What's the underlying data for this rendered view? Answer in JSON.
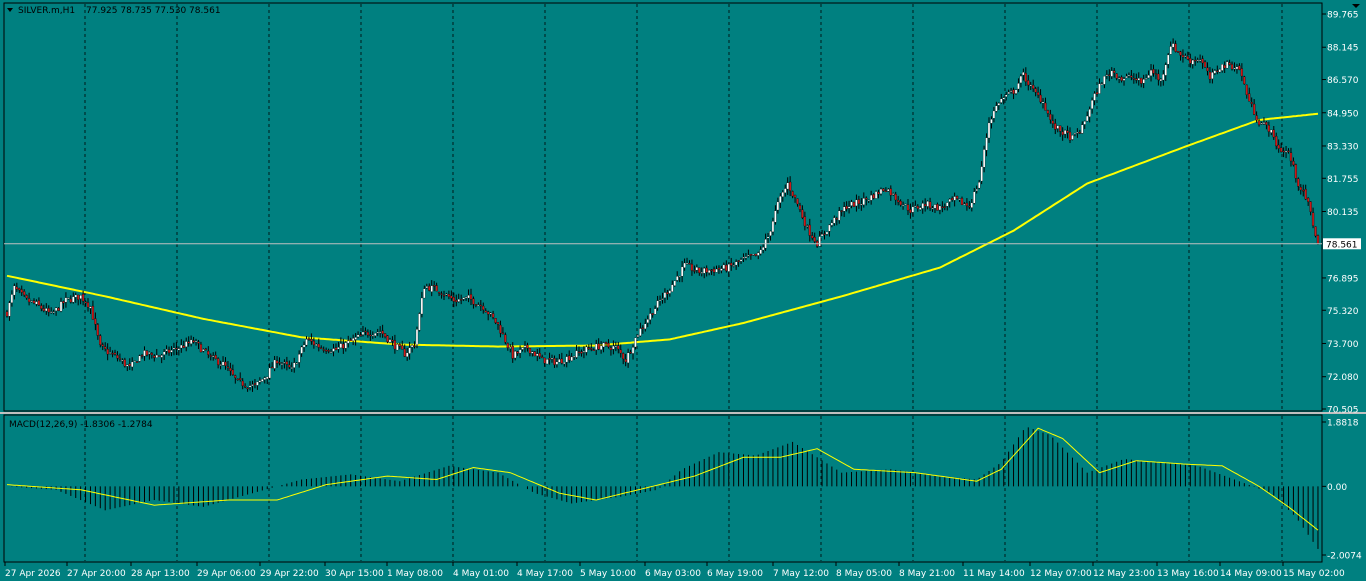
{
  "header": {
    "title": "SILVER.m,H1",
    "ohlc": "77.925 78.735 77.530 78.561"
  },
  "indicator": {
    "label": "MACD(12,26,9) -1.8306 -1.2784"
  },
  "price_axis": {
    "labels": [
      "89.765",
      "88.145",
      "86.570",
      "84.950",
      "83.330",
      "81.755",
      "80.135",
      "78.561",
      "76.895",
      "75.320",
      "73.700",
      "72.080",
      "70.505"
    ],
    "current_price": "78.561",
    "min": 70.505,
    "max": 89.765
  },
  "macd_axis": {
    "labels": [
      "1.8818",
      "0.00",
      "-2.0074"
    ],
    "min": -2.0074,
    "max": 1.8818
  },
  "time_axis": {
    "labels": [
      "27 Apr 2026",
      "27 Apr 20:00",
      "28 Apr 13:00",
      "29 Apr 06:00",
      "29 Apr 22:00",
      "30 Apr 15:00",
      "1 May 08:00",
      "4 May 01:00",
      "4 May 17:00",
      "5 May 10:00",
      "6 May 03:00",
      "6 May 19:00",
      "7 May 12:00",
      "8 May 05:00",
      "8 May 21:00",
      "11 May 14:00",
      "12 May 07:00",
      "12 May 23:00",
      "13 May 16:00",
      "14 May 09:00",
      "15 May 02:00"
    ]
  },
  "colors": {
    "background": "#008080",
    "bull_candle": "#ffffff",
    "bear_candle": "#cc1a1a",
    "wick": "#000000",
    "ma_line": "#ffff00",
    "signal_line": "#ffff00",
    "histogram": "#000000",
    "grid": "#000000",
    "price_line": "#c0c0c0"
  },
  "chart_data": {
    "type": "candlestick",
    "close_anchors": [
      [
        0,
        75.2
      ],
      [
        3,
        76.4
      ],
      [
        8,
        75.8
      ],
      [
        12,
        75.6
      ],
      [
        18,
        75.1
      ],
      [
        24,
        75.8
      ],
      [
        30,
        76.0
      ],
      [
        34,
        75.5
      ],
      [
        38,
        73.5
      ],
      [
        45,
        73.0
      ],
      [
        50,
        72.5
      ],
      [
        55,
        73.2
      ],
      [
        62,
        73.1
      ],
      [
        70,
        73.5
      ],
      [
        76,
        73.8
      ],
      [
        83,
        73.0
      ],
      [
        88,
        72.7
      ],
      [
        94,
        71.8
      ],
      [
        101,
        71.6
      ],
      [
        106,
        72.2
      ],
      [
        110,
        72.9
      ],
      [
        116,
        72.4
      ],
      [
        122,
        73.9
      ],
      [
        128,
        73.5
      ],
      [
        134,
        73.4
      ],
      [
        140,
        73.8
      ],
      [
        146,
        74.2
      ],
      [
        152,
        74.3
      ],
      [
        158,
        73.6
      ],
      [
        162,
        73.2
      ],
      [
        166,
        73.7
      ],
      [
        170,
        76.5
      ],
      [
        176,
        76.3
      ],
      [
        182,
        75.8
      ],
      [
        188,
        75.9
      ],
      [
        194,
        75.5
      ],
      [
        200,
        74.6
      ],
      [
        206,
        73.1
      ],
      [
        212,
        73.5
      ],
      [
        218,
        72.9
      ],
      [
        224,
        72.8
      ],
      [
        230,
        73.1
      ],
      [
        236,
        73.4
      ],
      [
        242,
        73.6
      ],
      [
        248,
        73.5
      ],
      [
        252,
        72.9
      ],
      [
        257,
        74.2
      ],
      [
        262,
        75.1
      ],
      [
        266,
        75.8
      ],
      [
        270,
        76.4
      ],
      [
        276,
        77.5
      ],
      [
        282,
        77.2
      ],
      [
        288,
        77.3
      ],
      [
        294,
        77.4
      ],
      [
        300,
        77.8
      ],
      [
        306,
        78.0
      ],
      [
        310,
        78.9
      ],
      [
        314,
        80.5
      ],
      [
        318,
        81.5
      ],
      [
        322,
        80.5
      ],
      [
        326,
        79.3
      ],
      [
        330,
        78.6
      ],
      [
        336,
        79.6
      ],
      [
        342,
        80.4
      ],
      [
        348,
        80.6
      ],
      [
        354,
        81.0
      ],
      [
        358,
        81.3
      ],
      [
        362,
        80.8
      ],
      [
        368,
        80.2
      ],
      [
        374,
        80.5
      ],
      [
        380,
        80.3
      ],
      [
        386,
        80.7
      ],
      [
        392,
        80.4
      ],
      [
        396,
        81.6
      ],
      [
        400,
        84.5
      ],
      [
        404,
        85.5
      ],
      [
        410,
        86.0
      ],
      [
        414,
        86.8
      ],
      [
        418,
        86.0
      ],
      [
        422,
        85.5
      ],
      [
        426,
        84.3
      ],
      [
        430,
        84.0
      ],
      [
        434,
        83.7
      ],
      [
        438,
        84.2
      ],
      [
        442,
        85.5
      ],
      [
        446,
        86.5
      ],
      [
        450,
        87.0
      ],
      [
        454,
        86.6
      ],
      [
        458,
        86.7
      ],
      [
        462,
        86.4
      ],
      [
        466,
        87.0
      ],
      [
        470,
        86.5
      ],
      [
        474,
        88.3
      ],
      [
        478,
        87.8
      ],
      [
        482,
        87.5
      ],
      [
        486,
        87.6
      ],
      [
        490,
        86.6
      ],
      [
        494,
        87.2
      ],
      [
        498,
        87.3
      ],
      [
        502,
        87.1
      ],
      [
        506,
        85.5
      ],
      [
        510,
        84.5
      ],
      [
        514,
        84.2
      ],
      [
        518,
        83.2
      ],
      [
        522,
        83.0
      ],
      [
        526,
        81.5
      ],
      [
        530,
        80.5
      ],
      [
        534,
        78.561
      ]
    ],
    "ma_anchors": [
      [
        0,
        77.0
      ],
      [
        40,
        76.0
      ],
      [
        80,
        74.9
      ],
      [
        120,
        74.0
      ],
      [
        160,
        73.65
      ],
      [
        200,
        73.55
      ],
      [
        240,
        73.6
      ],
      [
        270,
        73.9
      ],
      [
        300,
        74.7
      ],
      [
        340,
        76.0
      ],
      [
        380,
        77.4
      ],
      [
        410,
        79.2
      ],
      [
        440,
        81.5
      ],
      [
        480,
        83.3
      ],
      [
        510,
        84.6
      ],
      [
        534,
        84.9
      ]
    ],
    "macd_anchors": [
      [
        0,
        0.0
      ],
      [
        20,
        -0.1
      ],
      [
        40,
        -0.7
      ],
      [
        60,
        -0.4
      ],
      [
        80,
        -0.6
      ],
      [
        100,
        -0.2
      ],
      [
        120,
        0.2
      ],
      [
        140,
        0.35
      ],
      [
        160,
        0.15
      ],
      [
        180,
        0.6
      ],
      [
        200,
        0.4
      ],
      [
        215,
        -0.2
      ],
      [
        230,
        -0.5
      ],
      [
        250,
        -0.3
      ],
      [
        265,
        -0.1
      ],
      [
        275,
        0.5
      ],
      [
        290,
        1.0
      ],
      [
        305,
        0.9
      ],
      [
        320,
        1.3
      ],
      [
        340,
        0.4
      ],
      [
        360,
        0.5
      ],
      [
        380,
        0.3
      ],
      [
        395,
        0.2
      ],
      [
        405,
        0.7
      ],
      [
        415,
        1.75
      ],
      [
        425,
        1.5
      ],
      [
        440,
        0.4
      ],
      [
        455,
        0.8
      ],
      [
        470,
        0.7
      ],
      [
        485,
        0.6
      ],
      [
        500,
        0.2
      ],
      [
        515,
        -0.2
      ],
      [
        525,
        -0.9
      ],
      [
        534,
        -1.83
      ]
    ],
    "signal_anchors": [
      [
        0,
        0.05
      ],
      [
        30,
        -0.1
      ],
      [
        60,
        -0.55
      ],
      [
        90,
        -0.4
      ],
      [
        110,
        -0.4
      ],
      [
        130,
        0.05
      ],
      [
        155,
        0.3
      ],
      [
        175,
        0.2
      ],
      [
        190,
        0.55
      ],
      [
        205,
        0.4
      ],
      [
        225,
        -0.2
      ],
      [
        240,
        -0.4
      ],
      [
        260,
        -0.05
      ],
      [
        280,
        0.3
      ],
      [
        300,
        0.85
      ],
      [
        315,
        0.85
      ],
      [
        330,
        1.1
      ],
      [
        345,
        0.5
      ],
      [
        370,
        0.4
      ],
      [
        395,
        0.15
      ],
      [
        405,
        0.5
      ],
      [
        420,
        1.7
      ],
      [
        430,
        1.4
      ],
      [
        445,
        0.4
      ],
      [
        460,
        0.75
      ],
      [
        480,
        0.65
      ],
      [
        495,
        0.6
      ],
      [
        510,
        0.0
      ],
      [
        522,
        -0.6
      ],
      [
        534,
        -1.28
      ]
    ],
    "candle_count": 535
  }
}
